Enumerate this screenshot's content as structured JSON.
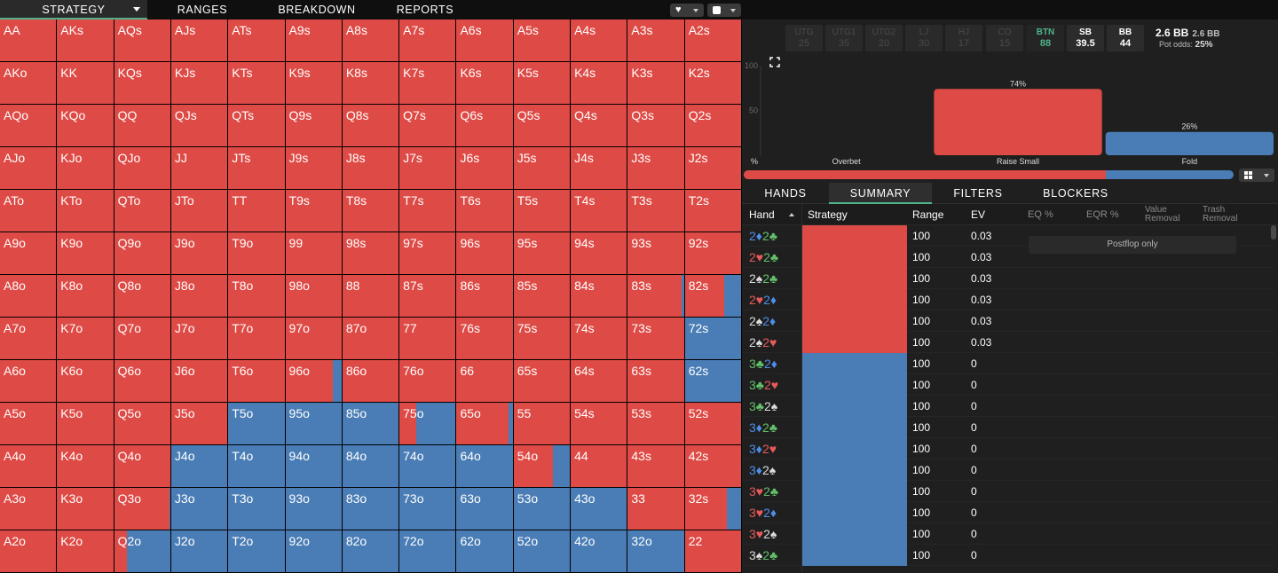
{
  "nav": {
    "tabs": [
      "STRATEGY",
      "RANGES",
      "BREAKDOWN",
      "REPORTS"
    ],
    "heart_glyph": "♥"
  },
  "colors": {
    "raise": "#de4a45",
    "fold": "#4a7db5",
    "accent": "#4fb38a"
  },
  "grid": {
    "rows": [
      [
        "AA",
        "AKs",
        "AQs",
        "AJs",
        "ATs",
        "A9s",
        "A8s",
        "A7s",
        "A6s",
        "A5s",
        "A4s",
        "A3s",
        "A2s"
      ],
      [
        "AKo",
        "KK",
        "KQs",
        "KJs",
        "KTs",
        "K9s",
        "K8s",
        "K7s",
        "K6s",
        "K5s",
        "K4s",
        "K3s",
        "K2s"
      ],
      [
        "AQo",
        "KQo",
        "QQ",
        "QJs",
        "QTs",
        "Q9s",
        "Q8s",
        "Q7s",
        "Q6s",
        "Q5s",
        "Q4s",
        "Q3s",
        "Q2s"
      ],
      [
        "AJo",
        "KJo",
        "QJo",
        "JJ",
        "JTs",
        "J9s",
        "J8s",
        "J7s",
        "J6s",
        "J5s",
        "J4s",
        "J3s",
        "J2s"
      ],
      [
        "ATo",
        "KTo",
        "QTo",
        "JTo",
        "TT",
        "T9s",
        "T8s",
        "T7s",
        "T6s",
        "T5s",
        "T4s",
        "T3s",
        "T2s"
      ],
      [
        "A9o",
        "K9o",
        "Q9o",
        "J9o",
        "T9o",
        "99",
        "98s",
        "97s",
        "96s",
        "95s",
        "94s",
        "93s",
        "92s"
      ],
      [
        "A8o",
        "K8o",
        "Q8o",
        "J8o",
        "T8o",
        "98o",
        "88",
        "87s",
        "86s",
        "85s",
        "84s",
        "83s",
        "82s"
      ],
      [
        "A7o",
        "K7o",
        "Q7o",
        "J7o",
        "T7o",
        "97o",
        "87o",
        "77",
        "76s",
        "75s",
        "74s",
        "73s",
        "72s"
      ],
      [
        "A6o",
        "K6o",
        "Q6o",
        "J6o",
        "T6o",
        "96o",
        "86o",
        "76o",
        "66",
        "65s",
        "64s",
        "63s",
        "62s"
      ],
      [
        "A5o",
        "K5o",
        "Q5o",
        "J5o",
        "T5o",
        "95o",
        "85o",
        "75o",
        "65o",
        "55",
        "54s",
        "53s",
        "52s"
      ],
      [
        "A4o",
        "K4o",
        "Q4o",
        "J4o",
        "T4o",
        "94o",
        "84o",
        "74o",
        "64o",
        "54o",
        "44",
        "43s",
        "42s"
      ],
      [
        "A3o",
        "K3o",
        "Q3o",
        "J3o",
        "T3o",
        "93o",
        "83o",
        "73o",
        "63o",
        "53o",
        "43o",
        "33",
        "32s"
      ],
      [
        "A2o",
        "K2o",
        "Q2o",
        "J2o",
        "T2o",
        "92o",
        "82o",
        "72o",
        "62o",
        "52o",
        "42o",
        "32o",
        "22"
      ]
    ],
    "fold_fraction": [
      [
        0,
        0,
        0,
        0,
        0,
        0,
        0,
        0,
        0,
        0,
        0,
        0,
        0
      ],
      [
        0,
        0,
        0,
        0,
        0,
        0,
        0,
        0,
        0,
        0,
        0,
        0,
        0
      ],
      [
        0,
        0,
        0,
        0,
        0,
        0,
        0,
        0,
        0,
        0,
        0,
        0,
        0
      ],
      [
        0,
        0,
        0,
        0,
        0,
        0,
        0,
        0,
        0,
        0,
        0,
        0,
        0
      ],
      [
        0,
        0,
        0,
        0,
        0,
        0,
        0,
        0,
        0,
        0,
        0,
        0,
        0
      ],
      [
        0,
        0,
        0,
        0,
        0,
        0,
        0,
        0,
        0,
        0,
        0,
        0,
        0
      ],
      [
        0,
        0,
        0,
        0,
        0,
        0,
        0,
        0,
        0,
        0,
        0,
        0.05,
        0.3
      ],
      [
        0,
        0,
        0,
        0,
        0,
        0,
        0,
        0,
        0,
        0,
        0,
        0,
        1
      ],
      [
        0,
        0,
        0,
        0,
        0,
        0.15,
        0,
        0,
        0,
        0,
        0,
        0,
        1
      ],
      [
        0,
        0,
        0,
        0,
        1,
        1,
        1,
        0.7,
        0.08,
        0,
        0,
        0,
        0
      ],
      [
        0,
        0,
        0,
        1,
        1,
        1,
        1,
        1,
        1,
        0.3,
        0,
        0,
        0
      ],
      [
        0,
        0,
        0.02,
        1,
        1,
        1,
        1,
        1,
        1,
        1,
        1,
        0,
        0.25
      ],
      [
        0,
        0,
        0.78,
        1,
        1,
        1,
        1,
        1,
        1,
        1,
        1,
        1,
        0
      ]
    ]
  },
  "positions": [
    {
      "name": "UTG",
      "value": "25",
      "state": "dim"
    },
    {
      "name": "UTG1",
      "value": "35",
      "state": "dim"
    },
    {
      "name": "UTG2",
      "value": "20",
      "state": "dim"
    },
    {
      "name": "LJ",
      "value": "30",
      "state": "dim"
    },
    {
      "name": "HJ",
      "value": "17",
      "state": "dim"
    },
    {
      "name": "CO",
      "value": "15",
      "state": "dim"
    },
    {
      "name": "BTN",
      "value": "88",
      "state": "active"
    },
    {
      "name": "SB",
      "value": "39.5",
      "state": "light"
    },
    {
      "name": "BB",
      "value": "44",
      "state": "light"
    }
  ],
  "pot": {
    "main": "2.6 BB",
    "sub": "2.6 BB",
    "odds_label": "Pot odds:",
    "odds_value": "25%"
  },
  "chart_data": {
    "type": "bar",
    "categories": [
      "Overbet",
      "Raise Small",
      "Fold"
    ],
    "values": [
      0,
      74,
      26
    ],
    "value_labels": [
      "",
      "74%",
      "26%"
    ],
    "ylabel": "%",
    "yticks": [
      "100",
      "50"
    ],
    "ylim": [
      0,
      100
    ],
    "colors": [
      "#de4a45",
      "#de4a45",
      "#4a7db5"
    ]
  },
  "mix": {
    "raise_pct": 74,
    "fold_pct": 26
  },
  "subtabs": [
    "HANDS",
    "SUMMARY",
    "FILTERS",
    "BLOCKERS"
  ],
  "table": {
    "headers": {
      "hand": "Hand",
      "strategy": "Strategy",
      "range": "Range",
      "ev": "EV",
      "eq": "EQ %",
      "eqr": "EQR %",
      "value_1": "Value",
      "value_2": "Removal",
      "trash_1": "Trash",
      "trash_2": "Removal"
    },
    "postflop_note": "Postflop only",
    "rows": [
      {
        "c1": "2",
        "s1": "♦",
        "c2": "2",
        "s2": "♣",
        "range": "100",
        "ev": "0.03"
      },
      {
        "c1": "2",
        "s1": "♥",
        "c2": "2",
        "s2": "♣",
        "range": "100",
        "ev": "0.03"
      },
      {
        "c1": "2",
        "s1": "♠",
        "c2": "2",
        "s2": "♣",
        "range": "100",
        "ev": "0.03"
      },
      {
        "c1": "2",
        "s1": "♥",
        "c2": "2",
        "s2": "♦",
        "range": "100",
        "ev": "0.03"
      },
      {
        "c1": "2",
        "s1": "♠",
        "c2": "2",
        "s2": "♦",
        "range": "100",
        "ev": "0.03"
      },
      {
        "c1": "2",
        "s1": "♠",
        "c2": "2",
        "s2": "♥",
        "range": "100",
        "ev": "0.03"
      },
      {
        "c1": "3",
        "s1": "♣",
        "c2": "2",
        "s2": "♦",
        "range": "100",
        "ev": "0"
      },
      {
        "c1": "3",
        "s1": "♣",
        "c2": "2",
        "s2": "♥",
        "range": "100",
        "ev": "0"
      },
      {
        "c1": "3",
        "s1": "♣",
        "c2": "2",
        "s2": "♠",
        "range": "100",
        "ev": "0"
      },
      {
        "c1": "3",
        "s1": "♦",
        "c2": "2",
        "s2": "♣",
        "range": "100",
        "ev": "0"
      },
      {
        "c1": "3",
        "s1": "♦",
        "c2": "2",
        "s2": "♥",
        "range": "100",
        "ev": "0"
      },
      {
        "c1": "3",
        "s1": "♦",
        "c2": "2",
        "s2": "♠",
        "range": "100",
        "ev": "0"
      },
      {
        "c1": "3",
        "s1": "♥",
        "c2": "2",
        "s2": "♣",
        "range": "100",
        "ev": "0"
      },
      {
        "c1": "3",
        "s1": "♥",
        "c2": "2",
        "s2": "♦",
        "range": "100",
        "ev": "0"
      },
      {
        "c1": "3",
        "s1": "♥",
        "c2": "2",
        "s2": "♠",
        "range": "100",
        "ev": "0"
      },
      {
        "c1": "3",
        "s1": "♠",
        "c2": "2",
        "s2": "♣",
        "range": "100",
        "ev": "0"
      }
    ],
    "raise_rows": 6
  }
}
